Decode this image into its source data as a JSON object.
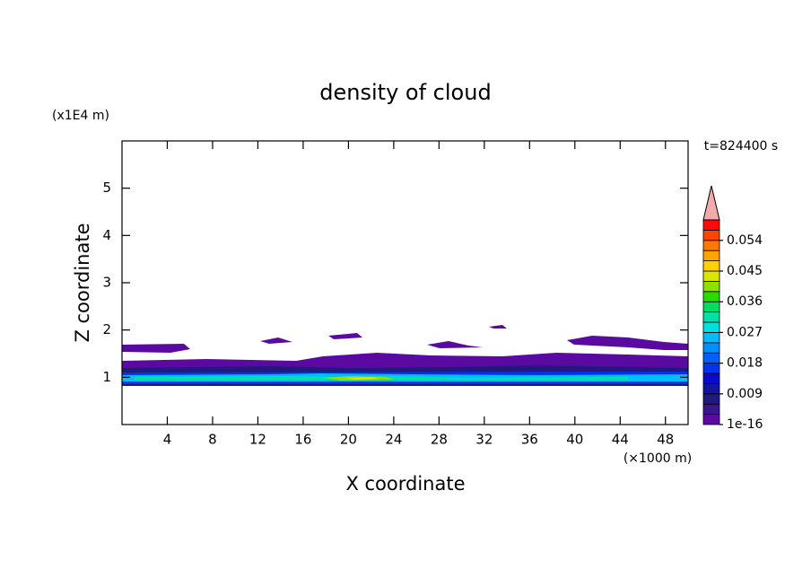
{
  "chart_data": {
    "type": "contour",
    "title": "density of cloud",
    "xlabel": "X coordinate",
    "ylabel": "Z coordinate",
    "x_unit": "(×1000 m)",
    "y_unit": "(x1E4 m)",
    "annotation": "t=824400 s",
    "xlim": [
      0,
      50
    ],
    "xticks": [
      4,
      8,
      12,
      16,
      20,
      24,
      28,
      32,
      36,
      40,
      44,
      48
    ],
    "ylim": [
      0,
      6
    ],
    "yticks": [
      1,
      2,
      3,
      4,
      5
    ],
    "colorbar": {
      "lim": [
        1e-16,
        0.06
      ],
      "ticks": [
        {
          "value": 1e-16,
          "label": "1e-16"
        },
        0.009,
        0.018,
        0.027,
        0.036,
        0.045,
        0.054
      ],
      "colors": [
        "#5a0aa0",
        "#3c148c",
        "#23197d",
        "#1414a0",
        "#0a0ac8",
        "#0032f0",
        "#0060ff",
        "#0090ff",
        "#00bcff",
        "#00e0e0",
        "#00e0a8",
        "#00dc64",
        "#28dc00",
        "#8ce100",
        "#dce600",
        "#ffd200",
        "#ffa500",
        "#ff7800",
        "#ff4600",
        "#ff0a0a"
      ],
      "extend_color": "#f4aaaa"
    }
  }
}
